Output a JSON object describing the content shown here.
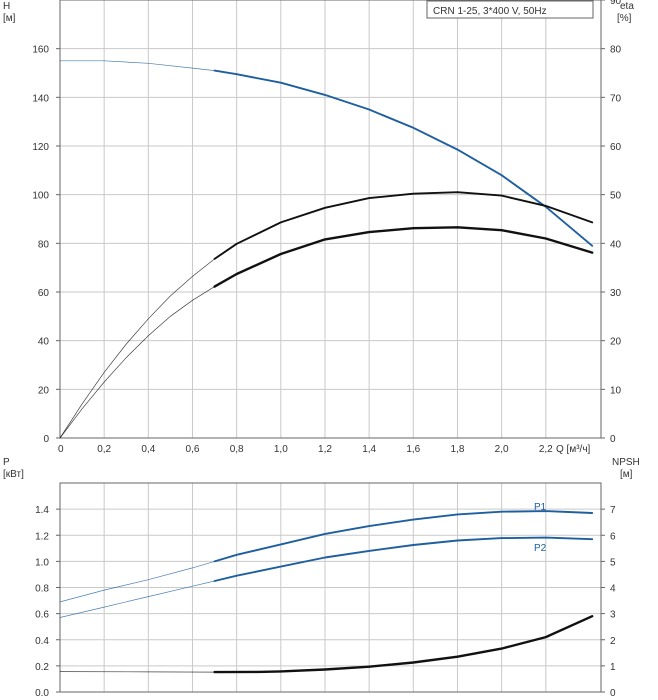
{
  "chart_data": [
    {
      "type": "line",
      "title": "CRN 1-25, 3*400 V, 50Hz",
      "ylabel_left": "H",
      "ylabel_left_unit": "[м]",
      "ylabel_right": "eta",
      "ylabel_right_unit": "[%]",
      "xlabel": "Q [м³/ч]",
      "xlim": [
        0,
        2.45
      ],
      "ylim_left": [
        0,
        180
      ],
      "ylim_right": [
        0,
        90
      ],
      "x_ticks": [
        "0",
        "0,2",
        "0,4",
        "0,6",
        "0,8",
        "1,0",
        "1,2",
        "1,4",
        "1,6",
        "1,8",
        "2,0",
        "2,2"
      ],
      "y_ticks_left": [
        "0",
        "20",
        "40",
        "60",
        "80",
        "100",
        "120",
        "140",
        "160"
      ],
      "y_ticks_right": [
        "0",
        "10",
        "20",
        "30",
        "40",
        "50",
        "60",
        "70",
        "80",
        "90"
      ],
      "grid": true,
      "series": [
        {
          "color": "#1f5fa0",
          "axis": "left",
          "bold_from": 0.7,
          "points": [
            [
              0,
              155
            ],
            [
              0.2,
              155
            ],
            [
              0.4,
              154
            ],
            [
              0.6,
              152
            ],
            [
              0.7,
              151
            ],
            [
              0.8,
              149.5
            ],
            [
              1.0,
              146
            ],
            [
              1.2,
              141
            ],
            [
              1.4,
              135
            ],
            [
              1.6,
              127.5
            ],
            [
              1.8,
              118.5
            ],
            [
              2.0,
              108
            ],
            [
              2.2,
              95
            ],
            [
              2.41,
              79
            ]
          ]
        },
        {
          "color": "#111111",
          "axis": "right",
          "bold_from": 0.7,
          "points": [
            [
              0,
              0
            ],
            [
              0.1,
              7
            ],
            [
              0.2,
              13.5
            ],
            [
              0.3,
              19.3
            ],
            [
              0.4,
              24.5
            ],
            [
              0.5,
              29.2
            ],
            [
              0.6,
              33.2
            ],
            [
              0.7,
              36.8
            ],
            [
              0.8,
              39.9
            ],
            [
              1.0,
              44.3
            ],
            [
              1.2,
              47.3
            ],
            [
              1.4,
              49.3
            ],
            [
              1.6,
              50.2
            ],
            [
              1.8,
              50.5
            ],
            [
              2.0,
              49.8
            ],
            [
              2.2,
              47.7
            ],
            [
              2.41,
              44.3
            ]
          ]
        },
        {
          "color": "#111111",
          "axis": "right",
          "bold_from": 0.7,
          "bold": true,
          "points": [
            [
              0,
              0
            ],
            [
              0.1,
              6
            ],
            [
              0.2,
              11.5
            ],
            [
              0.3,
              16.5
            ],
            [
              0.4,
              21
            ],
            [
              0.5,
              25
            ],
            [
              0.6,
              28.3
            ],
            [
              0.7,
              31.1
            ],
            [
              0.8,
              33.7
            ],
            [
              1.0,
              37.8
            ],
            [
              1.2,
              40.8
            ],
            [
              1.4,
              42.3
            ],
            [
              1.6,
              43.1
            ],
            [
              1.8,
              43.3
            ],
            [
              2.0,
              42.7
            ],
            [
              2.2,
              41
            ],
            [
              2.41,
              38.1
            ]
          ]
        }
      ]
    },
    {
      "type": "line",
      "ylabel_left": "P",
      "ylabel_left_unit": "[кВт]",
      "ylabel_right": "NPSH",
      "ylabel_right_unit": "[м]",
      "xlim": [
        0,
        2.45
      ],
      "ylim_left": [
        0,
        1.6
      ],
      "ylim_right": [
        0,
        8
      ],
      "y_ticks_left": [
        "0.0",
        "0.2",
        "0.4",
        "0.6",
        "0.8",
        "1.0",
        "1.2",
        "1.4"
      ],
      "y_ticks_right": [
        "0",
        "1",
        "2",
        "3",
        "4",
        "5",
        "6",
        "7"
      ],
      "grid": true,
      "series": [
        {
          "name": "P1",
          "color": "#1f5fa0",
          "axis": "left",
          "bold_from": 0.7,
          "points": [
            [
              0,
              0.69
            ],
            [
              0.2,
              0.78
            ],
            [
              0.4,
              0.86
            ],
            [
              0.6,
              0.95
            ],
            [
              0.7,
              1.0
            ],
            [
              0.8,
              1.05
            ],
            [
              1.0,
              1.13
            ],
            [
              1.2,
              1.21
            ],
            [
              1.4,
              1.27
            ],
            [
              1.6,
              1.32
            ],
            [
              1.8,
              1.36
            ],
            [
              2.0,
              1.38
            ],
            [
              2.2,
              1.385
            ],
            [
              2.41,
              1.37
            ]
          ]
        },
        {
          "name": "P2",
          "color": "#1f5fa0",
          "axis": "left",
          "bold_from": 0.7,
          "points": [
            [
              0,
              0.57
            ],
            [
              0.2,
              0.65
            ],
            [
              0.4,
              0.73
            ],
            [
              0.6,
              0.81
            ],
            [
              0.7,
              0.85
            ],
            [
              0.8,
              0.89
            ],
            [
              1.0,
              0.96
            ],
            [
              1.2,
              1.03
            ],
            [
              1.4,
              1.08
            ],
            [
              1.6,
              1.125
            ],
            [
              1.8,
              1.16
            ],
            [
              2.0,
              1.178
            ],
            [
              2.2,
              1.182
            ],
            [
              2.41,
              1.17
            ]
          ]
        },
        {
          "color": "#111111",
          "axis": "right",
          "bold_from": 0.7,
          "bold": true,
          "points": [
            [
              0,
              0.78
            ],
            [
              0.4,
              0.77
            ],
            [
              0.7,
              0.76
            ],
            [
              0.9,
              0.77
            ],
            [
              1.0,
              0.79
            ],
            [
              1.2,
              0.86
            ],
            [
              1.4,
              0.97
            ],
            [
              1.6,
              1.13
            ],
            [
              1.8,
              1.35
            ],
            [
              2.0,
              1.66
            ],
            [
              2.2,
              2.1
            ],
            [
              2.41,
              2.9
            ]
          ]
        }
      ]
    }
  ]
}
